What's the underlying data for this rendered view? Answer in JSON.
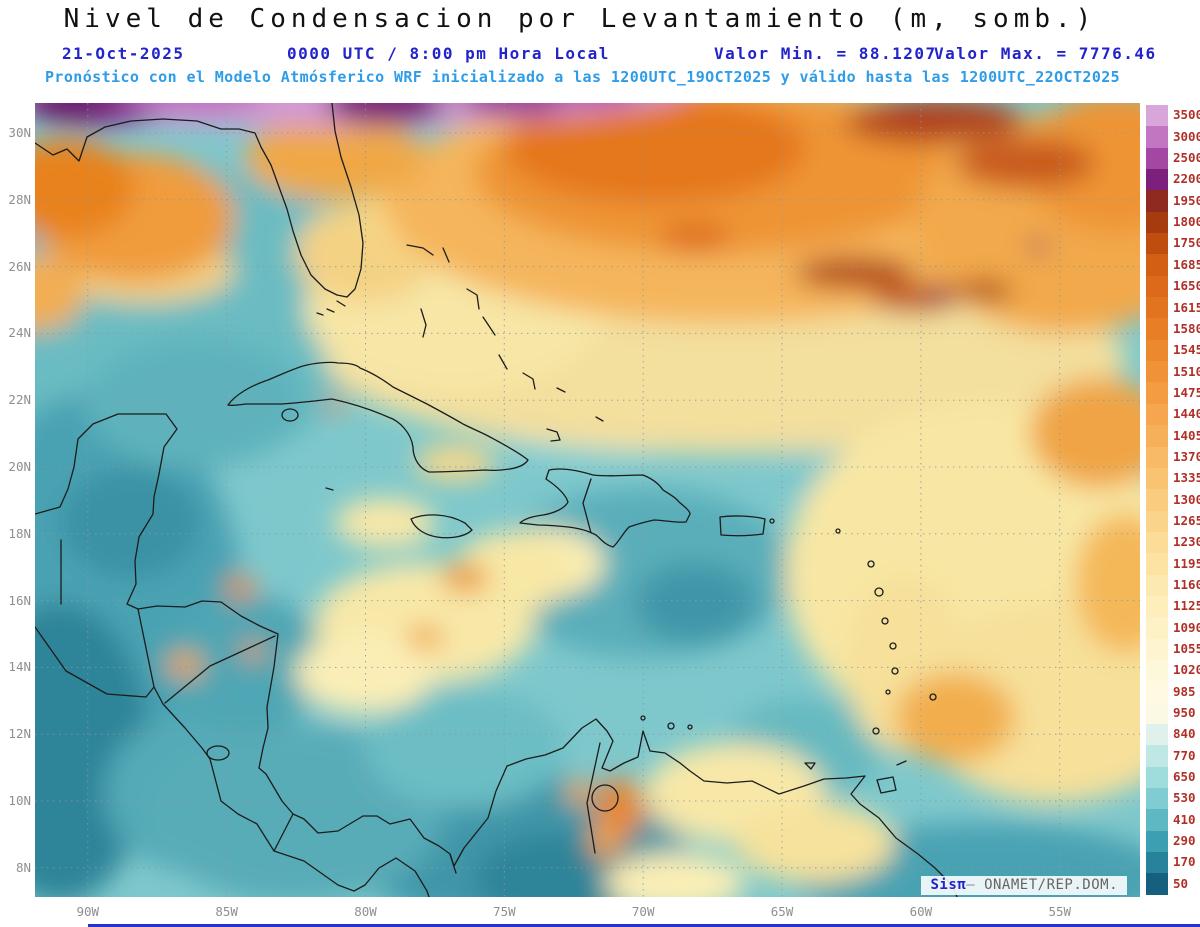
{
  "header": {
    "title": "Nivel de Condensacion por Levantamiento (m, somb.)",
    "date": "21-Oct-2025",
    "time": "0000 UTC / 8:00 pm Hora Local",
    "min_label": "Valor Min. = 88.1207",
    "max_label": "Valor Max. = 7776.46",
    "forecast_line": "Pronóstico con el Modelo Atmósferico WRF inicializado a las 1200UTC_19OCT2025 y válido hasta las  1200UTC_22OCT2025"
  },
  "map": {
    "lat_labels": [
      "30N",
      "28N",
      "26N",
      "24N",
      "22N",
      "20N",
      "18N",
      "16N",
      "14N",
      "12N",
      "10N",
      "8N"
    ],
    "lon_labels": [
      "90W",
      "85W",
      "80W",
      "75W",
      "70W",
      "65W",
      "60W",
      "55W"
    ]
  },
  "colorbar": {
    "entries": [
      {
        "v": "3500",
        "c": "#d9a6d9"
      },
      {
        "v": "3000",
        "c": "#c276c2"
      },
      {
        "v": "2500",
        "c": "#a347a3"
      },
      {
        "v": "2200",
        "c": "#7d1f7d"
      },
      {
        "v": "1950",
        "c": "#8f2a20"
      },
      {
        "v": "1800",
        "c": "#a63b10"
      },
      {
        "v": "1750",
        "c": "#bf4d0e"
      },
      {
        "v": "1685",
        "c": "#d35f14"
      },
      {
        "v": "1650",
        "c": "#dd6a1a"
      },
      {
        "v": "1615",
        "c": "#e27420"
      },
      {
        "v": "1580",
        "c": "#e87e26"
      },
      {
        "v": "1545",
        "c": "#ec882e"
      },
      {
        "v": "1510",
        "c": "#f09238"
      },
      {
        "v": "1475",
        "c": "#f39c42"
      },
      {
        "v": "1440",
        "c": "#f5a64e"
      },
      {
        "v": "1405",
        "c": "#f7b05a"
      },
      {
        "v": "1370",
        "c": "#f8ba66"
      },
      {
        "v": "1335",
        "c": "#f9c372"
      },
      {
        "v": "1300",
        "c": "#facc80"
      },
      {
        "v": "1265",
        "c": "#fbd48c"
      },
      {
        "v": "1230",
        "c": "#fbdc98"
      },
      {
        "v": "1195",
        "c": "#fce3a4"
      },
      {
        "v": "1160",
        "c": "#fce9b0"
      },
      {
        "v": "1125",
        "c": "#fdeebc"
      },
      {
        "v": "1090",
        "c": "#fdf2c6"
      },
      {
        "v": "1055",
        "c": "#fef5d0"
      },
      {
        "v": "1020",
        "c": "#fef8da"
      },
      {
        "v": "985",
        "c": "#fefae2"
      },
      {
        "v": "950",
        "c": "#fbf8e4"
      },
      {
        "v": "840",
        "c": "#dff1ea"
      },
      {
        "v": "770",
        "c": "#bfe7e4"
      },
      {
        "v": "650",
        "c": "#9fdcdc"
      },
      {
        "v": "530",
        "c": "#7fcdd2"
      },
      {
        "v": "410",
        "c": "#5db8c4"
      },
      {
        "v": "290",
        "c": "#3d9fb2"
      },
      {
        "v": "170",
        "c": "#27839c"
      },
      {
        "v": "50",
        "c": "#175f7e"
      }
    ]
  },
  "credit": {
    "sis": "Sis",
    "pi": "π",
    "dash": "— ",
    "org": "ONAMET/REP.DOM."
  }
}
